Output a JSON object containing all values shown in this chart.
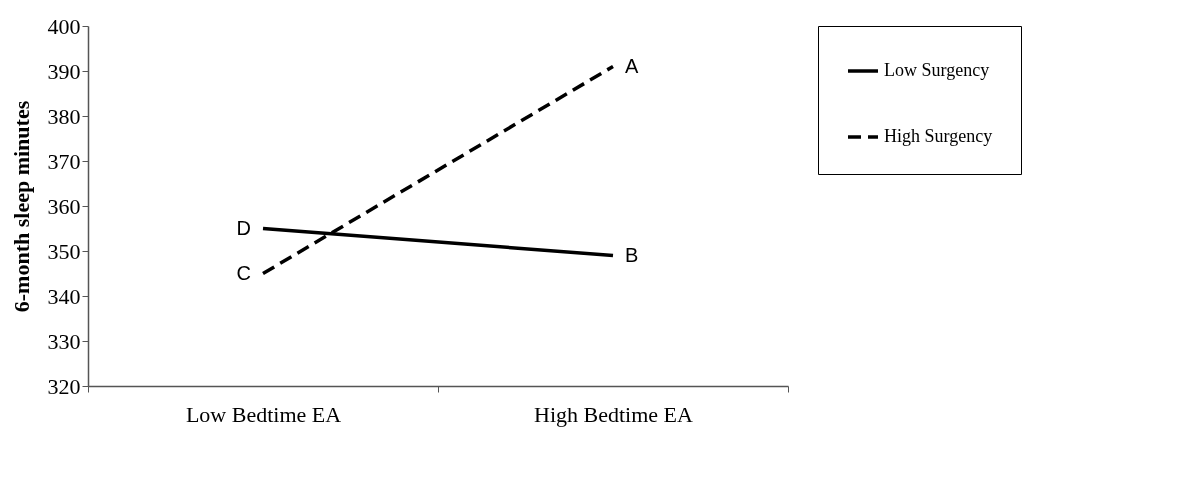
{
  "chart_data": {
    "type": "line",
    "ylabel": "6-month sleep minutes",
    "categories": [
      "Low Bedtime EA",
      "High Bedtime EA"
    ],
    "series": [
      {
        "name": "Low Surgency",
        "color": "#000000",
        "values": [
          355,
          349
        ],
        "line_style": "solid"
      },
      {
        "name": "High Surgency",
        "color": "#000000",
        "values": [
          345,
          391
        ],
        "line_style": "dashed"
      }
    ],
    "ylim": [
      320,
      400
    ],
    "yticks": [
      320,
      330,
      340,
      350,
      360,
      370,
      380,
      390,
      400
    ],
    "grid": false,
    "legend": "right",
    "marker": "none",
    "annotations": [
      {
        "text": "A",
        "x": "High Bedtime EA",
        "y": 391
      },
      {
        "text": "B",
        "x": "High Bedtime EA",
        "y": 349
      },
      {
        "text": "C",
        "x": "Low Bedtime EA",
        "y": 345
      },
      {
        "text": "D",
        "x": "Low Bedtime EA",
        "y": 355
      }
    ]
  }
}
